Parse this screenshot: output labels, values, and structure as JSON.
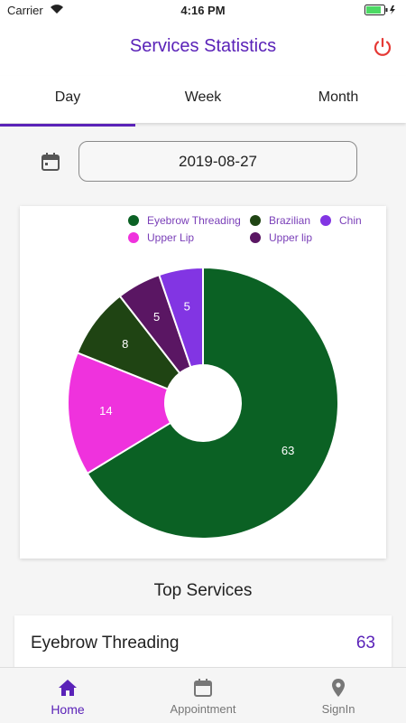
{
  "status": {
    "carrier": "Carrier",
    "time": "4:16 PM"
  },
  "header": {
    "title": "Services Statistics"
  },
  "tabs": [
    {
      "label": "Day",
      "active": true
    },
    {
      "label": "Week",
      "active": false
    },
    {
      "label": "Month",
      "active": false
    }
  ],
  "date": {
    "value": "2019-08-27"
  },
  "chart_data": {
    "type": "pie",
    "donut": true,
    "legend_position": "top",
    "series": [
      {
        "name": "Eyebrow Threading",
        "value": 63,
        "color": "#0b6124"
      },
      {
        "name": "Brazilian",
        "value": 8,
        "color": "#1f4413"
      },
      {
        "name": "Chin",
        "value": 5,
        "color": "#8235e3"
      },
      {
        "name": "Upper Lip",
        "value": 14,
        "color": "#ef32dd"
      },
      {
        "name": "Upper lip",
        "value": 5,
        "color": "#5a1663"
      }
    ],
    "slice_order": [
      "Eyebrow Threading",
      "Upper Lip",
      "Brazilian",
      "Upper lip",
      "Chin"
    ]
  },
  "top_services": {
    "title": "Top Services",
    "items": [
      {
        "name": "Eyebrow Threading",
        "count": "63"
      }
    ]
  },
  "nav": [
    {
      "label": "Home",
      "icon": "home-icon",
      "active": true
    },
    {
      "label": "Appointment",
      "icon": "calendar-icon",
      "active": false
    },
    {
      "label": "SignIn",
      "icon": "location-pin-icon",
      "active": false
    }
  ],
  "colors": {
    "accent": "#5a22b8",
    "power": "#e53935"
  }
}
